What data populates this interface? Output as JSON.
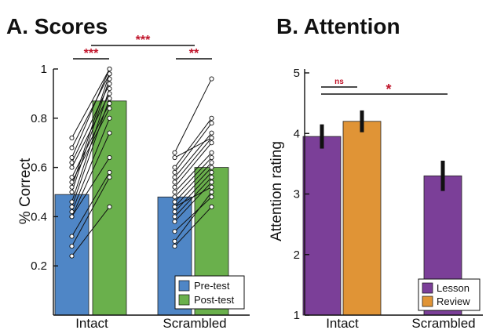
{
  "colors": {
    "pre": "#4f86c6",
    "post": "#6ab04c",
    "lesson": "#7b3f98",
    "review": "#e09436",
    "sig": "#c0142a",
    "bracket": "#111111"
  },
  "chart_data": [
    {
      "type": "bar",
      "title": "A. Scores",
      "ylabel": "% Correct",
      "ylim": [
        0,
        1
      ],
      "yticks": [
        "0.2",
        "0.4",
        "0.6",
        "0.8",
        "1"
      ],
      "categories": [
        "Intact",
        "Scrambled"
      ],
      "series": [
        {
          "name": "Pre-test",
          "values": [
            0.49,
            0.48
          ]
        },
        {
          "name": "Post-test",
          "values": [
            0.87,
            0.6
          ]
        }
      ],
      "legend": "bottom-right",
      "subject_lines": {
        "Intact": [
          [
            0.24,
            0.44
          ],
          [
            0.28,
            0.56
          ],
          [
            0.32,
            0.58
          ],
          [
            0.4,
            0.64
          ],
          [
            0.4,
            0.74
          ],
          [
            0.42,
            0.8
          ],
          [
            0.44,
            0.88
          ],
          [
            0.46,
            0.92
          ],
          [
            0.5,
            0.96
          ],
          [
            0.52,
            0.98
          ],
          [
            0.54,
            0.84
          ],
          [
            0.56,
            0.86
          ],
          [
            0.6,
            0.9
          ],
          [
            0.62,
            0.94
          ],
          [
            0.64,
            1.0
          ],
          [
            0.72,
            1.0
          ],
          [
            0.68,
            0.98
          ]
        ],
        "Scrambled": [
          [
            0.28,
            0.44
          ],
          [
            0.3,
            0.5
          ],
          [
            0.34,
            0.48
          ],
          [
            0.38,
            0.54
          ],
          [
            0.4,
            0.56
          ],
          [
            0.42,
            0.58
          ],
          [
            0.44,
            0.6
          ],
          [
            0.46,
            0.62
          ],
          [
            0.48,
            0.64
          ],
          [
            0.5,
            0.66
          ],
          [
            0.52,
            0.7
          ],
          [
            0.54,
            0.72
          ],
          [
            0.56,
            0.74
          ],
          [
            0.58,
            0.78
          ],
          [
            0.6,
            0.8
          ],
          [
            0.64,
            0.72
          ],
          [
            0.66,
            0.96
          ],
          [
            0.44,
            0.52
          ]
        ]
      },
      "significance": [
        {
          "label": "***",
          "between": "Intact Pre-test vs Post-test"
        },
        {
          "label": "**",
          "between": "Scrambled Pre-test vs Post-test"
        },
        {
          "label": "***",
          "between": "Intact Post-test vs Scrambled Post-test"
        }
      ]
    },
    {
      "type": "bar",
      "title": "B. Attention",
      "ylabel": "Attention rating",
      "ylim": [
        1,
        5
      ],
      "yticks": [
        "1",
        "2",
        "3",
        "4",
        "5"
      ],
      "categories": [
        "Intact",
        "Scrambled"
      ],
      "series": [
        {
          "name": "Lesson",
          "values": [
            3.95,
            3.3
          ],
          "errors": [
            0.2,
            0.25
          ]
        },
        {
          "name": "Review",
          "values": [
            4.2,
            null
          ],
          "errors": [
            0.18,
            null
          ]
        }
      ],
      "legend": "bottom-right",
      "significance": [
        {
          "label": "ns",
          "between": "Intact Lesson vs Intact Review"
        },
        {
          "label": "*",
          "between": "Intact Lesson vs Scrambled Lesson"
        }
      ]
    }
  ]
}
